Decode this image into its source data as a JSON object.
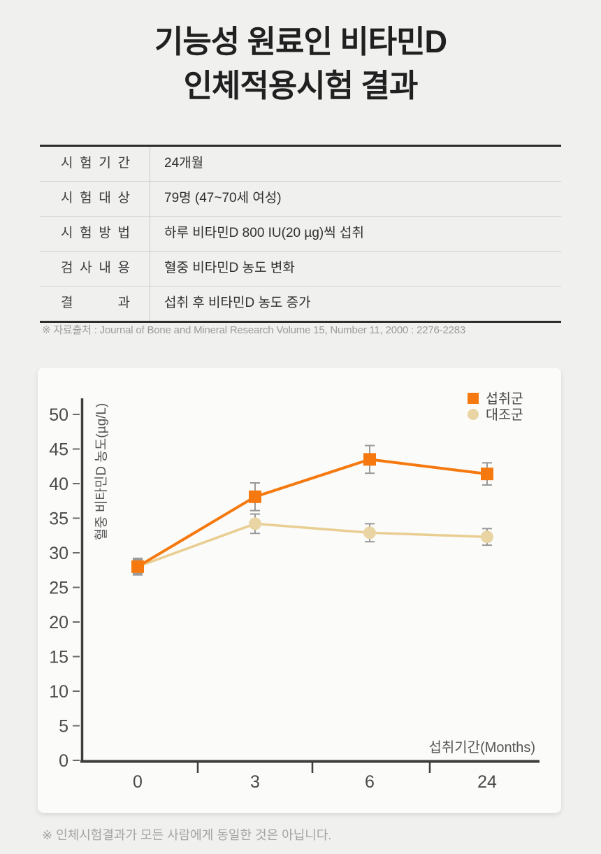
{
  "title": {
    "line1": "기능성 원료인 비타민D",
    "line2": "인체적용시험 결과"
  },
  "table": {
    "rows": [
      {
        "label": "시 험 기 간",
        "value": "24개월"
      },
      {
        "label": "시 험 대 상",
        "value": "79명 (47~70세 여성)"
      },
      {
        "label": "시 험 방 법",
        "value": "하루 비타민D 800 IU(20 µg)씩 섭취"
      },
      {
        "label": "검 사 내 용",
        "value": "혈중 비타민D 농도 변화"
      },
      {
        "label": "결 과",
        "value": "섭취 후 비타민D 농도 증가"
      }
    ]
  },
  "source_note": "※ 자료출처 : Journal of Bone and Mineral Research Volume 15, Number 11, 2000 : 2276-2283",
  "footer_note": "※ 인체시험결과가 모든 사람에게 동일한 것은 아닙니다.",
  "chart_data": {
    "type": "line",
    "categories": [
      "0",
      "3",
      "6",
      "24"
    ],
    "xlabel": "섭취기간(Months)",
    "ylabel": "혈중 비타민D 농도(µg/L)",
    "ylim": [
      0,
      50
    ],
    "ytick_step": 5,
    "grid": false,
    "legend_position": "top-right",
    "series": [
      {
        "name": "섭취군",
        "marker": "square",
        "color": "#F5790F",
        "marker_color": "#F5790F",
        "values": [
          28.0,
          38.1,
          43.5,
          41.4
        ],
        "errors": [
          1.2,
          2.0,
          2.0,
          1.6
        ]
      },
      {
        "name": "대조군",
        "marker": "circle",
        "color": "#E9CE92",
        "marker_color": "#E9D5A4",
        "values": [
          28.0,
          34.2,
          32.9,
          32.3
        ],
        "errors": [
          1.0,
          1.4,
          1.3,
          1.2
        ]
      }
    ],
    "error_bar_color": "#999999",
    "axis_color": "#3d3d3d",
    "tick_label_color": "#4a4a4a",
    "axis_title_color": "#555555"
  }
}
